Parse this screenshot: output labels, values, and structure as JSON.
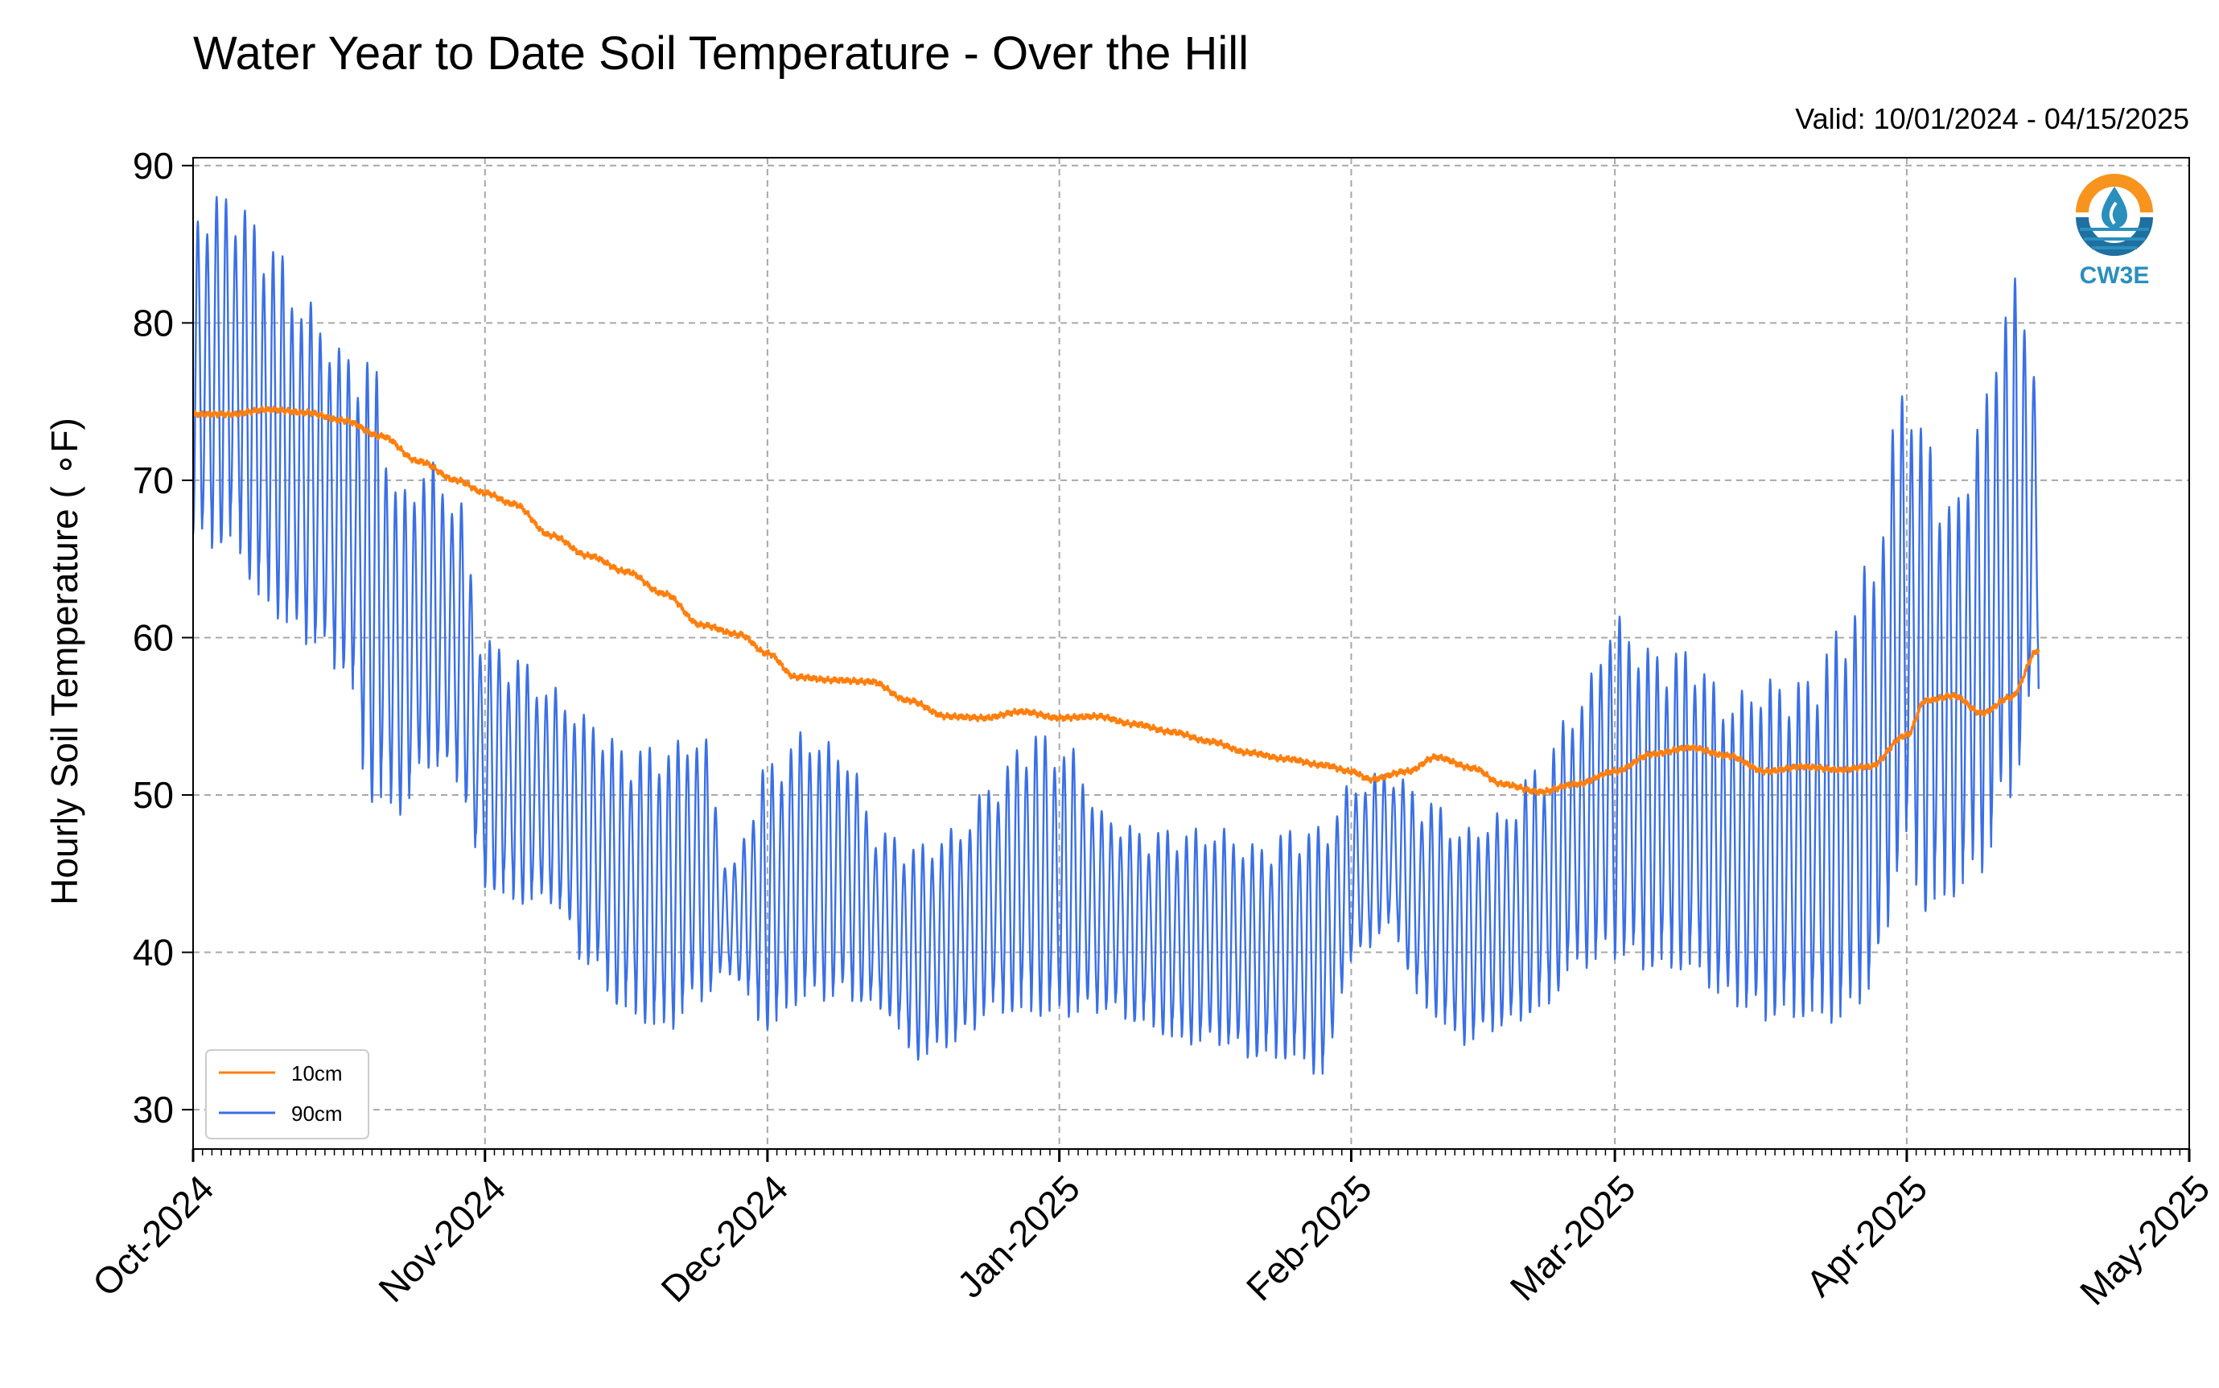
{
  "colors": {
    "series_10cm": "#ff7f0e",
    "series_90cm": "#3a6fe6",
    "logo_orange": "#f7941d",
    "logo_blue": "#2a8fbd"
  },
  "logo": {
    "text": "CW3E",
    "icon": "water-drop-logo-icon"
  },
  "chart_data": {
    "type": "line",
    "title": "Water Year to Date Soil Temperature - Over the Hill",
    "subtitle": "Valid: 10/01/2024 - 04/15/2025",
    "ylabel": "Hourly Soil Temperature ( ∘F)",
    "xlabel": "",
    "xlim": [
      "2024-10-01",
      "2025-05-01"
    ],
    "ylim": [
      27.5,
      90.5
    ],
    "yticks": [
      30,
      40,
      50,
      60,
      70,
      80,
      90
    ],
    "xticks": [
      {
        "date": "2024-10-01",
        "label": "Oct-2024"
      },
      {
        "date": "2024-11-01",
        "label": "Nov-2024"
      },
      {
        "date": "2024-12-01",
        "label": "Dec-2024"
      },
      {
        "date": "2025-01-01",
        "label": "Jan-2025"
      },
      {
        "date": "2025-02-01",
        "label": "Feb-2025"
      },
      {
        "date": "2025-03-01",
        "label": "Mar-2025"
      },
      {
        "date": "2025-04-01",
        "label": "Apr-2025"
      },
      {
        "date": "2025-05-01",
        "label": "May-2025"
      }
    ],
    "grid": true,
    "legend_position": "lower-left",
    "series": [
      {
        "name": "10cm",
        "style": "smooth",
        "x": [
          "2024-10-01",
          "2024-10-05",
          "2024-10-09",
          "2024-10-13",
          "2024-10-17",
          "2024-10-21",
          "2024-10-25",
          "2024-10-29",
          "2024-11-01",
          "2024-11-04",
          "2024-11-08",
          "2024-11-12",
          "2024-11-16",
          "2024-11-20",
          "2024-11-24",
          "2024-11-28",
          "2024-12-01",
          "2024-12-04",
          "2024-12-08",
          "2024-12-12",
          "2024-12-16",
          "2024-12-20",
          "2024-12-24",
          "2024-12-28",
          "2025-01-01",
          "2025-01-05",
          "2025-01-09",
          "2025-01-13",
          "2025-01-17",
          "2025-01-21",
          "2025-01-25",
          "2025-01-29",
          "2025-02-01",
          "2025-02-03",
          "2025-02-07",
          "2025-02-10",
          "2025-02-14",
          "2025-02-17",
          "2025-02-21",
          "2025-02-25",
          "2025-03-01",
          "2025-03-05",
          "2025-03-09",
          "2025-03-13",
          "2025-03-17",
          "2025-03-21",
          "2025-03-25",
          "2025-03-28",
          "2025-04-01",
          "2025-04-03",
          "2025-04-06",
          "2025-04-09",
          "2025-04-12",
          "2025-04-15"
        ],
        "values": [
          74.2,
          74.2,
          74.5,
          74.3,
          73.8,
          72.8,
          71.2,
          70.0,
          69.2,
          68.5,
          66.5,
          65.2,
          64.2,
          62.8,
          60.8,
          60.2,
          59.0,
          57.5,
          57.3,
          57.2,
          56.0,
          55.0,
          54.9,
          55.3,
          54.9,
          55.0,
          54.5,
          54.0,
          53.4,
          52.7,
          52.3,
          51.9,
          51.5,
          51.0,
          51.5,
          52.4,
          51.7,
          50.7,
          50.2,
          50.7,
          51.5,
          52.6,
          53.0,
          52.5,
          51.5,
          51.8,
          51.6,
          51.8,
          53.8,
          56.0,
          56.3,
          55.2,
          56.2,
          59.2
        ]
      },
      {
        "name": "90cm",
        "style": "diurnal",
        "x": [
          "2024-10-01",
          "2024-10-05",
          "2024-10-09",
          "2024-10-13",
          "2024-10-17",
          "2024-10-20",
          "2024-10-23",
          "2024-10-26",
          "2024-10-29",
          "2024-11-01",
          "2024-11-04",
          "2024-11-08",
          "2024-11-12",
          "2024-11-16",
          "2024-11-20",
          "2024-11-24",
          "2024-11-27",
          "2024-12-01",
          "2024-12-05",
          "2024-12-09",
          "2024-12-13",
          "2024-12-17",
          "2024-12-21",
          "2024-12-25",
          "2024-12-29",
          "2025-01-02",
          "2025-01-06",
          "2025-01-10",
          "2025-01-14",
          "2025-01-18",
          "2025-01-22",
          "2025-01-26",
          "2025-01-29",
          "2025-02-01",
          "2025-02-05",
          "2025-02-09",
          "2025-02-13",
          "2025-02-17",
          "2025-02-21",
          "2025-02-25",
          "2025-03-01",
          "2025-03-05",
          "2025-03-09",
          "2025-03-13",
          "2025-03-17",
          "2025-03-21",
          "2025-03-25",
          "2025-03-28",
          "2025-04-01",
          "2025-04-03",
          "2025-04-06",
          "2025-04-09",
          "2025-04-12",
          "2025-04-15"
        ],
        "low": [
          67,
          67,
          63,
          61,
          59,
          51,
          50,
          53,
          52,
          45,
          44,
          44,
          40,
          37,
          36,
          38,
          39,
          36,
          38,
          38,
          37,
          34,
          35,
          37,
          37,
          37,
          37,
          36,
          35,
          35,
          34,
          34,
          33,
          40,
          42,
          37,
          35,
          36,
          37,
          40,
          41,
          40,
          40,
          38,
          37,
          37,
          37,
          39,
          48,
          44,
          45,
          47,
          52,
          58
        ],
        "high": [
          86,
          87,
          84,
          80,
          77,
          76,
          68,
          70,
          68,
          59,
          58,
          56,
          54,
          52,
          52,
          53,
          45,
          51,
          53,
          52,
          47,
          46,
          47,
          50,
          53,
          52,
          48,
          47,
          47,
          47,
          46,
          47,
          47,
          50,
          51,
          49,
          47,
          48,
          51,
          55,
          60,
          58,
          58,
          55,
          56,
          56,
          59,
          63,
          75,
          71,
          67,
          73,
          81,
          77
        ]
      }
    ]
  }
}
